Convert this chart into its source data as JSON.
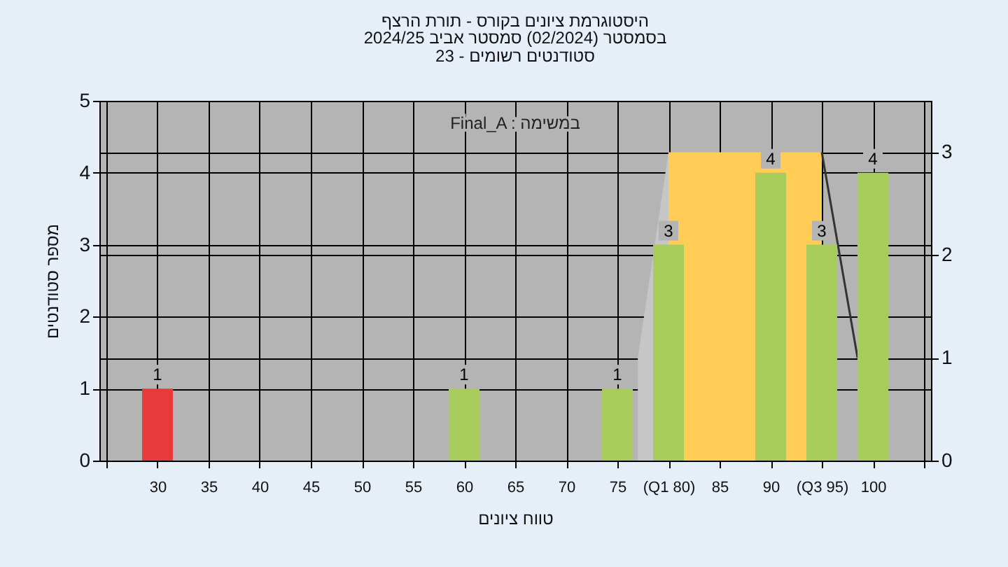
{
  "chart_data": {
    "type": "bar",
    "title": "היסטוגרמת ציונים בקורס - תורת הרצף",
    "subtitle": "בסמסטר  (02/2024)  סמסטר אביב 2024/25\nסטודנטים רשומים - 23",
    "xlabel": "טווח ציונים",
    "ylabel": "מספר סטודנטים",
    "annotations": [
      "Final_A : במשימה"
    ],
    "x": [
      30,
      60,
      75,
      80,
      90,
      95,
      100
    ],
    "xlim": [
      25,
      105
    ],
    "xticks": [
      {
        "value": 25,
        "label": null
      },
      30,
      35,
      40,
      45,
      50,
      55,
      60,
      65,
      70,
      75,
      {
        "value": 80,
        "label": "(Q1 80)"
      },
      85,
      90,
      {
        "value": 95,
        "label": "(Q3 95)"
      },
      100,
      {
        "value": 105,
        "label": null
      }
    ],
    "ylim": [
      0,
      5
    ],
    "yticks": [
      0,
      1,
      2,
      3,
      4,
      5
    ],
    "y2lim": [
      0,
      3.5
    ],
    "y2ticks": [
      0,
      1,
      2,
      3
    ],
    "series": [
      {
        "type": "area",
        "axis": "y2",
        "x": [
          80,
          95
        ],
        "values": [
          3,
          3
        ],
        "color": "#ffcc55"
      },
      {
        "type": "area",
        "axis": "y2",
        "x": [
          77,
          80
        ],
        "values": [
          1,
          3
        ],
        "color": "#c6c6c6"
      },
      {
        "values": [
          1,
          1,
          1,
          3,
          4,
          3,
          4
        ],
        "value_labels": [
          "1",
          "1",
          "1",
          "3",
          "4",
          "3",
          "4"
        ],
        "colors": [
          "#e83a3a",
          "#a8cc5c",
          "#a8cc5c",
          "#a8cc5c",
          "#a8cc5c",
          "#a8cc5c",
          "#a8cc5c"
        ]
      },
      {
        "type": "line",
        "axis": "y2",
        "x": [
          95,
          98.5
        ],
        "values": [
          3,
          1
        ],
        "color": "#333333"
      }
    ],
    "grid": true
  }
}
